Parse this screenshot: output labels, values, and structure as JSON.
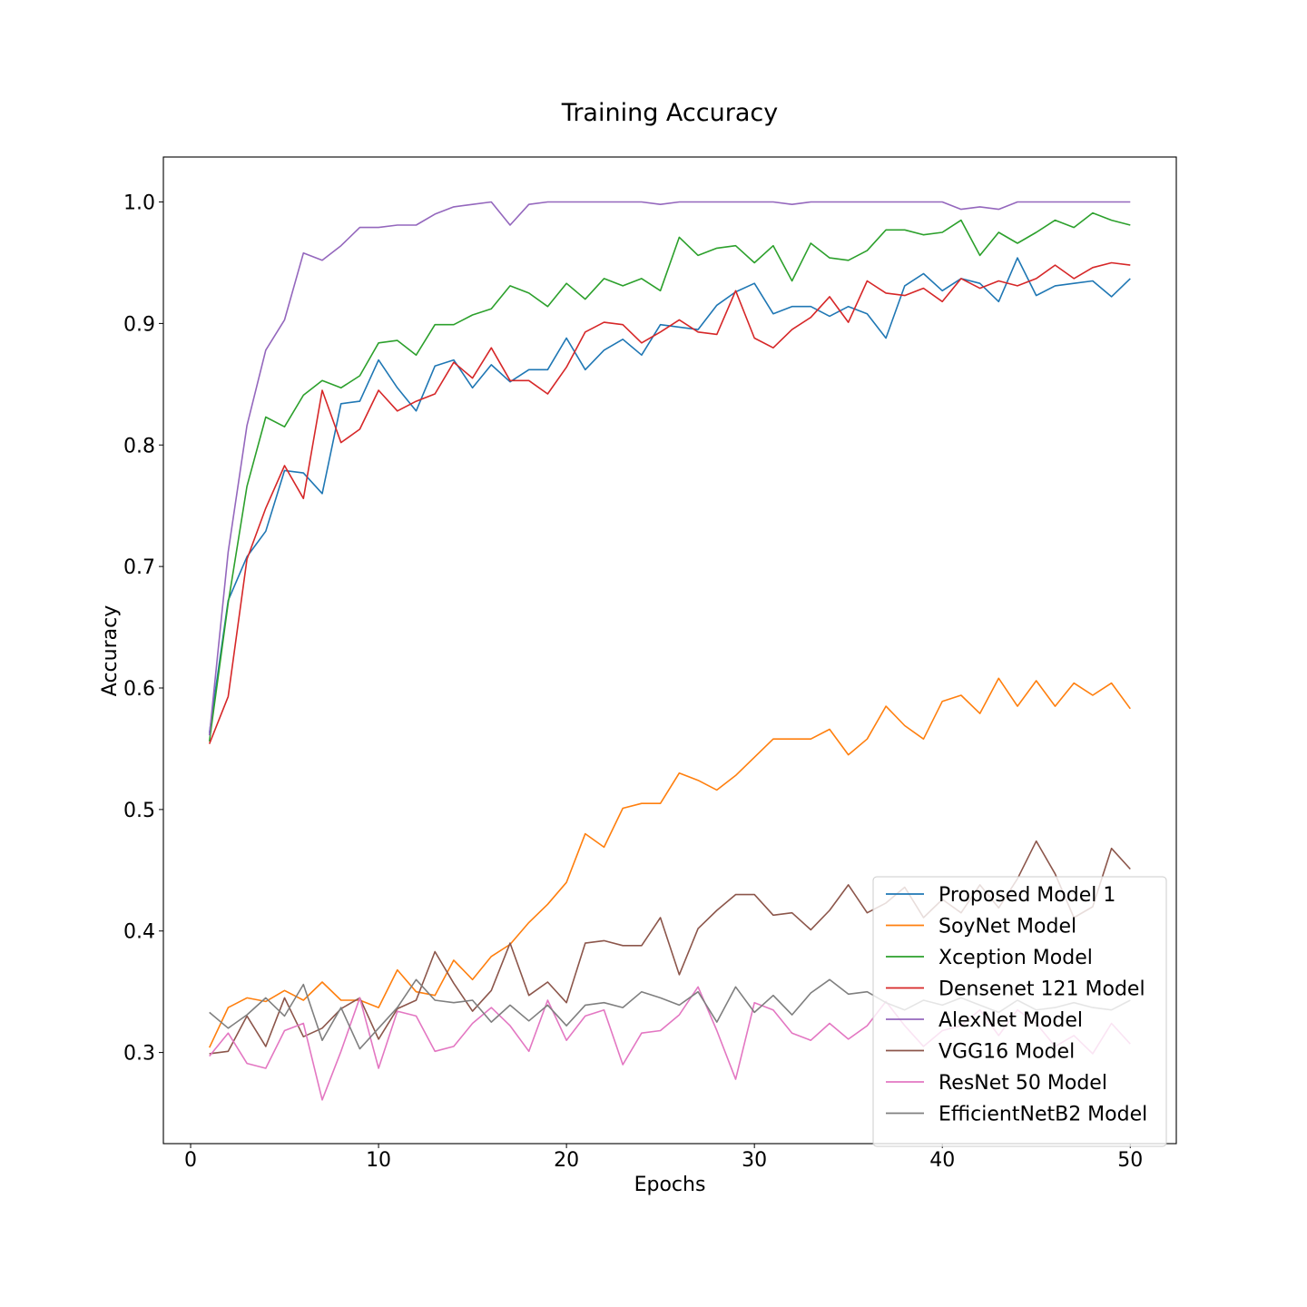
{
  "chart_data": {
    "type": "line",
    "title": "Training Accuracy",
    "xlabel": "Epochs",
    "ylabel": "Accuracy",
    "xlim": [
      -1.45,
      52.45
    ],
    "ylim": [
      0.225,
      1.037
    ],
    "xticks": [
      0,
      10,
      20,
      30,
      40,
      50
    ],
    "yticks": [
      0.3,
      0.4,
      0.5,
      0.6,
      0.7,
      0.8,
      0.9,
      1.0
    ],
    "xtick_labels": [
      "0",
      "10",
      "20",
      "30",
      "40",
      "50"
    ],
    "ytick_labels": [
      "0.3",
      "0.4",
      "0.5",
      "0.6",
      "0.7",
      "0.8",
      "0.9",
      "1.0"
    ],
    "grid": false,
    "legend_position": "lower-right",
    "x": [
      1,
      2,
      3,
      4,
      5,
      6,
      7,
      8,
      9,
      10,
      11,
      12,
      13,
      14,
      15,
      16,
      17,
      18,
      19,
      20,
      21,
      22,
      23,
      24,
      25,
      26,
      27,
      28,
      29,
      30,
      31,
      32,
      33,
      34,
      35,
      36,
      37,
      38,
      39,
      40,
      41,
      42,
      43,
      44,
      45,
      46,
      47,
      48,
      49,
      50
    ],
    "series": [
      {
        "name": "Proposed Model 1",
        "color": "#1f77b4",
        "values": [
          0.563,
          0.672,
          0.708,
          0.729,
          0.779,
          0.777,
          0.76,
          0.834,
          0.836,
          0.87,
          0.847,
          0.828,
          0.865,
          0.87,
          0.847,
          0.866,
          0.852,
          0.862,
          0.862,
          0.888,
          0.862,
          0.878,
          0.887,
          0.874,
          0.899,
          0.897,
          0.895,
          0.915,
          0.926,
          0.933,
          0.908,
          0.914,
          0.914,
          0.906,
          0.914,
          0.908,
          0.888,
          0.931,
          0.941,
          0.927,
          0.937,
          0.933,
          0.918,
          0.954,
          0.923,
          0.931,
          0.933,
          0.935,
          0.922,
          0.937
        ]
      },
      {
        "name": "SoyNet Model",
        "color": "#ff7f0e",
        "values": [
          0.304,
          0.337,
          0.345,
          0.342,
          0.351,
          0.343,
          0.358,
          0.343,
          0.343,
          0.337,
          0.368,
          0.35,
          0.347,
          0.376,
          0.36,
          0.379,
          0.389,
          0.407,
          0.422,
          0.44,
          0.48,
          0.469,
          0.501,
          0.505,
          0.505,
          0.53,
          0.524,
          0.516,
          0.528,
          0.543,
          0.558,
          0.558,
          0.558,
          0.566,
          0.545,
          0.558,
          0.585,
          0.569,
          0.558,
          0.589,
          0.594,
          0.579,
          0.608,
          0.585,
          0.606,
          0.585,
          0.604,
          0.594,
          0.604,
          0.583
        ]
      },
      {
        "name": "Xception Model",
        "color": "#2ca02c",
        "values": [
          0.556,
          0.67,
          0.766,
          0.823,
          0.815,
          0.841,
          0.853,
          0.847,
          0.857,
          0.884,
          0.886,
          0.874,
          0.899,
          0.899,
          0.907,
          0.912,
          0.931,
          0.925,
          0.914,
          0.933,
          0.92,
          0.937,
          0.931,
          0.937,
          0.927,
          0.971,
          0.956,
          0.962,
          0.964,
          0.95,
          0.964,
          0.935,
          0.966,
          0.954,
          0.952,
          0.96,
          0.977,
          0.977,
          0.973,
          0.975,
          0.985,
          0.956,
          0.975,
          0.966,
          0.975,
          0.985,
          0.979,
          0.991,
          0.985,
          0.981
        ]
      },
      {
        "name": "Densenet 121 Model",
        "color": "#d62728",
        "values": [
          0.554,
          0.593,
          0.706,
          0.748,
          0.783,
          0.756,
          0.845,
          0.802,
          0.813,
          0.845,
          0.828,
          0.836,
          0.842,
          0.868,
          0.855,
          0.88,
          0.853,
          0.853,
          0.842,
          0.864,
          0.893,
          0.901,
          0.899,
          0.884,
          0.893,
          0.903,
          0.893,
          0.891,
          0.927,
          0.888,
          0.88,
          0.895,
          0.905,
          0.922,
          0.901,
          0.935,
          0.925,
          0.923,
          0.929,
          0.918,
          0.937,
          0.929,
          0.935,
          0.931,
          0.937,
          0.948,
          0.937,
          0.946,
          0.95,
          0.948
        ]
      },
      {
        "name": "AlexNet Model",
        "color": "#9467bd",
        "values": [
          0.561,
          0.712,
          0.816,
          0.878,
          0.903,
          0.958,
          0.952,
          0.964,
          0.979,
          0.979,
          0.981,
          0.981,
          0.99,
          0.996,
          0.998,
          1.0,
          0.981,
          0.998,
          1.0,
          1.0,
          1.0,
          1.0,
          1.0,
          1.0,
          0.998,
          1.0,
          1.0,
          1.0,
          1.0,
          1.0,
          1.0,
          0.998,
          1.0,
          1.0,
          1.0,
          1.0,
          1.0,
          1.0,
          1.0,
          1.0,
          0.994,
          0.996,
          0.994,
          1.0,
          1.0,
          1.0,
          1.0,
          1.0,
          1.0,
          1.0
        ]
      },
      {
        "name": "VGG16 Model",
        "color": "#8c564b",
        "values": [
          0.299,
          0.301,
          0.33,
          0.305,
          0.345,
          0.313,
          0.32,
          0.336,
          0.345,
          0.311,
          0.336,
          0.343,
          0.383,
          0.357,
          0.334,
          0.351,
          0.39,
          0.347,
          0.358,
          0.341,
          0.39,
          0.392,
          0.388,
          0.388,
          0.411,
          0.364,
          0.402,
          0.417,
          0.43,
          0.43,
          0.413,
          0.415,
          0.401,
          0.417,
          0.438,
          0.415,
          0.423,
          0.436,
          0.411,
          0.426,
          0.415,
          0.438,
          0.419,
          0.443,
          0.474,
          0.447,
          0.411,
          0.42,
          0.468,
          0.451
        ]
      },
      {
        "name": "ResNet 50 Model",
        "color": "#e377c2",
        "values": [
          0.297,
          0.316,
          0.291,
          0.287,
          0.318,
          0.324,
          0.261,
          0.301,
          0.345,
          0.287,
          0.334,
          0.33,
          0.301,
          0.305,
          0.324,
          0.337,
          0.322,
          0.301,
          0.343,
          0.31,
          0.33,
          0.335,
          0.29,
          0.316,
          0.318,
          0.331,
          0.354,
          0.318,
          0.278,
          0.341,
          0.335,
          0.316,
          0.31,
          0.324,
          0.311,
          0.322,
          0.342,
          0.322,
          0.305,
          0.318,
          0.322,
          0.335,
          0.314,
          0.335,
          0.324,
          0.305,
          0.314,
          0.299,
          0.324,
          0.307
        ]
      },
      {
        "name": "EfficientNetB2 Model",
        "color": "#7f7f7f",
        "values": [
          0.333,
          0.32,
          0.331,
          0.345,
          0.33,
          0.356,
          0.31,
          0.337,
          0.303,
          0.32,
          0.337,
          0.36,
          0.343,
          0.341,
          0.343,
          0.325,
          0.339,
          0.326,
          0.339,
          0.322,
          0.339,
          0.341,
          0.337,
          0.35,
          0.345,
          0.339,
          0.35,
          0.325,
          0.354,
          0.333,
          0.347,
          0.331,
          0.349,
          0.36,
          0.348,
          0.35,
          0.341,
          0.335,
          0.343,
          0.339,
          0.345,
          0.339,
          0.333,
          0.343,
          0.335,
          0.337,
          0.341,
          0.337,
          0.335,
          0.343
        ]
      }
    ]
  }
}
